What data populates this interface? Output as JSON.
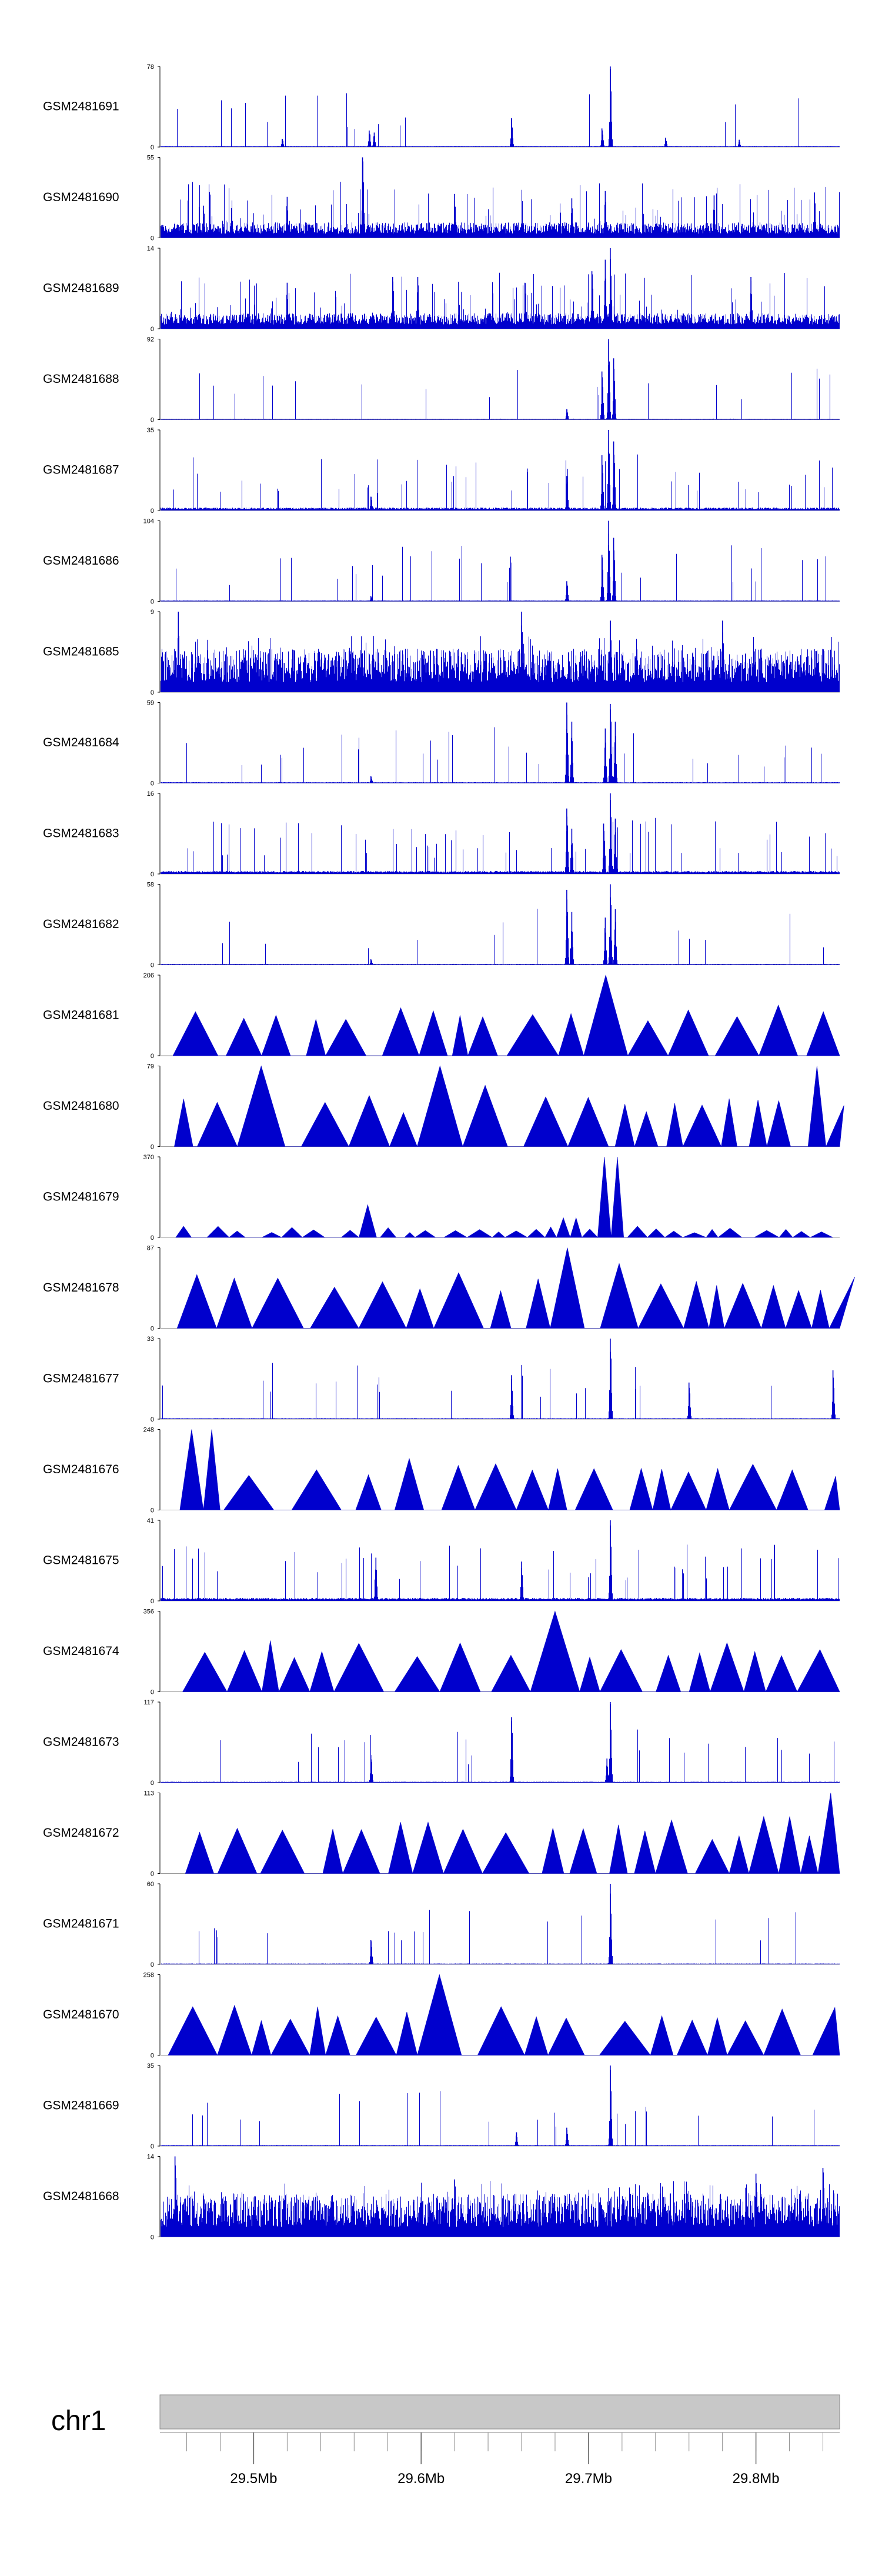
{
  "chart_data": {
    "type": "area",
    "title": "",
    "xlabel": "",
    "ylabel": "",
    "x_range_bp": [
      29444000,
      29850000
    ],
    "series_color": "#0000cd",
    "axis_color": "#9a9a9a",
    "chromosome": "chr1",
    "ruler_fill": "#c8c8c8",
    "ruler_ticks": [
      {
        "pos": 29500000,
        "label": "29.5Mb"
      },
      {
        "pos": 29600000,
        "label": "29.6Mb"
      },
      {
        "pos": 29700000,
        "label": "29.7Mb"
      },
      {
        "pos": 29800000,
        "label": "29.8Mb"
      }
    ],
    "minor_tick_step_bp": 20000,
    "tracks": [
      {
        "name": "GSM2481691",
        "ymax": 78,
        "ymin_label": "0",
        "style": "sparse",
        "peaks": [
          {
            "pos": 29713000,
            "v": 78
          },
          {
            "pos": 29654000,
            "v": 28
          },
          {
            "pos": 29569000,
            "v": 16
          },
          {
            "pos": 29572000,
            "v": 14
          },
          {
            "pos": 29708000,
            "v": 18
          },
          {
            "pos": 29517000,
            "v": 8
          },
          {
            "pos": 29746000,
            "v": 9
          },
          {
            "pos": 29790000,
            "v": 7
          }
        ]
      },
      {
        "name": "GSM2481690",
        "ymax": 55,
        "ymin_label": "0",
        "style": "dense",
        "peaks": [
          {
            "pos": 29565000,
            "v": 55
          },
          {
            "pos": 29710000,
            "v": 32
          },
          {
            "pos": 29520000,
            "v": 28
          },
          {
            "pos": 29690000,
            "v": 27
          },
          {
            "pos": 29620000,
            "v": 30
          },
          {
            "pos": 29775000,
            "v": 29
          },
          {
            "pos": 29835000,
            "v": 31
          },
          {
            "pos": 29470000,
            "v": 22
          }
        ]
      },
      {
        "name": "GSM2481689",
        "ymax": 14,
        "ymin_label": "0",
        "style": "dense",
        "peaks": [
          {
            "pos": 29713000,
            "v": 14
          },
          {
            "pos": 29710000,
            "v": 12
          },
          {
            "pos": 29702000,
            "v": 10
          },
          {
            "pos": 29598000,
            "v": 9
          },
          {
            "pos": 29662000,
            "v": 8
          },
          {
            "pos": 29797000,
            "v": 9
          },
          {
            "pos": 29520000,
            "v": 8
          },
          {
            "pos": 29583000,
            "v": 9
          }
        ]
      },
      {
        "name": "GSM2481688",
        "ymax": 92,
        "ymin_label": "0",
        "style": "sparse",
        "peaks": [
          {
            "pos": 29712000,
            "v": 92
          },
          {
            "pos": 29715000,
            "v": 70
          },
          {
            "pos": 29708000,
            "v": 55
          },
          {
            "pos": 29687000,
            "v": 12
          }
        ]
      },
      {
        "name": "GSM2481687",
        "ymax": 35,
        "ymin_label": "0",
        "style": "dense-low",
        "peaks": [
          {
            "pos": 29712000,
            "v": 35
          },
          {
            "pos": 29715000,
            "v": 30
          },
          {
            "pos": 29708000,
            "v": 24
          },
          {
            "pos": 29687000,
            "v": 15
          },
          {
            "pos": 29570000,
            "v": 6
          }
        ]
      },
      {
        "name": "GSM2481686",
        "ymax": 104,
        "ymin_label": "0",
        "style": "sparse",
        "peaks": [
          {
            "pos": 29712000,
            "v": 104
          },
          {
            "pos": 29715000,
            "v": 82
          },
          {
            "pos": 29708000,
            "v": 60
          },
          {
            "pos": 29687000,
            "v": 26
          },
          {
            "pos": 29570000,
            "v": 7
          }
        ]
      },
      {
        "name": "GSM2481685",
        "ymax": 9,
        "ymin_label": "0",
        "style": "dense-high",
        "peaks": [
          {
            "pos": 29455000,
            "v": 9
          },
          {
            "pos": 29660000,
            "v": 9
          },
          {
            "pos": 29713000,
            "v": 8
          },
          {
            "pos": 29780000,
            "v": 8
          }
        ]
      },
      {
        "name": "GSM2481684",
        "ymax": 59,
        "ymin_label": "0",
        "style": "sparse",
        "peaks": [
          {
            "pos": 29687000,
            "v": 59
          },
          {
            "pos": 29713000,
            "v": 58
          },
          {
            "pos": 29690000,
            "v": 45
          },
          {
            "pos": 29716000,
            "v": 45
          },
          {
            "pos": 29710000,
            "v": 40
          },
          {
            "pos": 29570000,
            "v": 5
          }
        ]
      },
      {
        "name": "GSM2481683",
        "ymax": 16,
        "ymin_label": "0",
        "style": "dense-low",
        "peaks": [
          {
            "pos": 29713000,
            "v": 16
          },
          {
            "pos": 29687000,
            "v": 13
          },
          {
            "pos": 29716000,
            "v": 11
          },
          {
            "pos": 29690000,
            "v": 9
          },
          {
            "pos": 29709000,
            "v": 10
          }
        ]
      },
      {
        "name": "GSM2481682",
        "ymax": 58,
        "ymin_label": "0",
        "style": "sparse",
        "peaks": [
          {
            "pos": 29713000,
            "v": 58
          },
          {
            "pos": 29687000,
            "v": 54
          },
          {
            "pos": 29716000,
            "v": 40
          },
          {
            "pos": 29690000,
            "v": 38
          },
          {
            "pos": 29710000,
            "v": 34
          },
          {
            "pos": 29570000,
            "v": 4
          }
        ]
      },
      {
        "name": "GSM2481681",
        "ymax": 206,
        "ymin_label": "0",
        "style": "triangles",
        "peaks": [
          {
            "pos": 29716000,
            "v": 206
          },
          {
            "pos": 29572000,
            "v": 140
          },
          {
            "pos": 29668000,
            "v": 66
          },
          {
            "pos": 29710000,
            "v": 110
          }
        ]
      },
      {
        "name": "GSM2481680",
        "ymax": 79,
        "ymin_label": "0",
        "style": "triangles",
        "peaks": [
          {
            "pos": 29511000,
            "v": 79
          },
          {
            "pos": 29610000,
            "v": 79
          },
          {
            "pos": 29835000,
            "v": 79
          },
          {
            "pos": 29617000,
            "v": 70
          },
          {
            "pos": 29640000,
            "v": 60
          }
        ]
      },
      {
        "name": "GSM2481679",
        "ymax": 370,
        "ymin_label": "0",
        "style": "triangles-low",
        "peaks": [
          {
            "pos": 29713000,
            "v": 370
          },
          {
            "pos": 29570000,
            "v": 150
          },
          {
            "pos": 29690000,
            "v": 90
          }
        ]
      },
      {
        "name": "GSM2481678",
        "ymax": 87,
        "ymin_label": "0",
        "style": "triangles",
        "peaks": [
          {
            "pos": 29687000,
            "v": 87
          },
          {
            "pos": 29713000,
            "v": 70
          },
          {
            "pos": 29620000,
            "v": 60
          },
          {
            "pos": 29455000,
            "v": 58
          }
        ]
      },
      {
        "name": "GSM2481677",
        "ymax": 33,
        "ymin_label": "0",
        "style": "sparse",
        "peaks": [
          {
            "pos": 29713000,
            "v": 33
          },
          {
            "pos": 29654000,
            "v": 18
          },
          {
            "pos": 29846000,
            "v": 20
          },
          {
            "pos": 29760000,
            "v": 15
          }
        ]
      },
      {
        "name": "GSM2481676",
        "ymax": 248,
        "ymin_label": "0",
        "style": "triangles",
        "peaks": [
          {
            "pos": 29470000,
            "v": 248
          }
        ]
      },
      {
        "name": "GSM2481675",
        "ymax": 41,
        "ymin_label": "0",
        "style": "dense-low",
        "peaks": [
          {
            "pos": 29713000,
            "v": 41
          },
          {
            "pos": 29573000,
            "v": 22
          },
          {
            "pos": 29660000,
            "v": 20
          }
        ]
      },
      {
        "name": "GSM2481674",
        "ymax": 356,
        "ymin_label": "0",
        "style": "triangles",
        "peaks": [
          {
            "pos": 29678000,
            "v": 356
          },
          {
            "pos": 29482000,
            "v": 175
          }
        ]
      },
      {
        "name": "GSM2481673",
        "ymax": 117,
        "ymin_label": "0",
        "style": "sparse",
        "peaks": [
          {
            "pos": 29713000,
            "v": 117
          },
          {
            "pos": 29654000,
            "v": 95
          },
          {
            "pos": 29570000,
            "v": 40
          },
          {
            "pos": 29711000,
            "v": 35
          }
        ]
      },
      {
        "name": "GSM2481672",
        "ymax": 113,
        "ymin_label": "0",
        "style": "triangles",
        "peaks": [
          {
            "pos": 29848000,
            "v": 113
          },
          {
            "pos": 29814000,
            "v": 80
          },
          {
            "pos": 29755000,
            "v": 75
          },
          {
            "pos": 29596000,
            "v": 72
          }
        ]
      },
      {
        "name": "GSM2481671",
        "ymax": 60,
        "ymin_label": "0",
        "style": "sparse",
        "peaks": [
          {
            "pos": 29713000,
            "v": 60
          },
          {
            "pos": 29570000,
            "v": 18
          }
        ]
      },
      {
        "name": "GSM2481670",
        "ymax": 258,
        "ymin_label": "0",
        "style": "triangles",
        "peaks": [
          {
            "pos": 29605000,
            "v": 258
          }
        ]
      },
      {
        "name": "GSM2481669",
        "ymax": 35,
        "ymin_label": "0",
        "style": "sparse",
        "peaks": [
          {
            "pos": 29713000,
            "v": 35
          },
          {
            "pos": 29687000,
            "v": 8
          },
          {
            "pos": 29657000,
            "v": 6
          }
        ]
      },
      {
        "name": "GSM2481668",
        "ymax": 14,
        "ymin_label": "0",
        "style": "dense-high",
        "peaks": [
          {
            "pos": 29453000,
            "v": 14
          },
          {
            "pos": 29840000,
            "v": 12
          },
          {
            "pos": 29800000,
            "v": 11
          },
          {
            "pos": 29620000,
            "v": 10
          }
        ]
      }
    ]
  }
}
